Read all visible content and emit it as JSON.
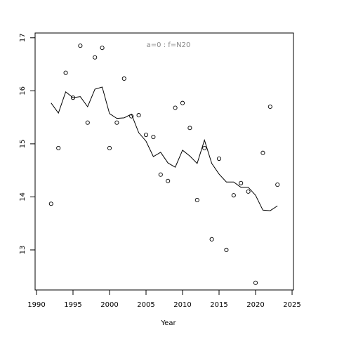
{
  "chart_data": {
    "type": "scatter",
    "annotation": "a=0  :  f=N20",
    "x_label": "Year",
    "x": [
      1992,
      1993,
      1994,
      1995,
      1996,
      1997,
      1998,
      1999,
      2000,
      2001,
      2002,
      2003,
      2004,
      2005,
      2006,
      2007,
      2008,
      2009,
      2010,
      2011,
      2012,
      2013,
      2014,
      2015,
      2016,
      2017,
      2018,
      2019,
      2020,
      2021,
      2022,
      2023
    ],
    "series": [
      {
        "style": "points",
        "color": "#000000",
        "values": [
          13.87,
          14.92,
          16.34,
          15.87,
          16.85,
          15.4,
          16.63,
          16.81,
          14.92,
          15.4,
          16.23,
          15.52,
          15.54,
          15.17,
          15.13,
          14.42,
          14.3,
          15.68,
          15.77,
          15.3,
          13.94,
          14.92,
          13.2,
          14.72,
          13.0,
          14.03,
          14.26,
          14.1,
          12.38,
          14.83,
          15.7,
          14.23
        ]
      },
      {
        "style": "line",
        "color": "#000000",
        "values": [
          15.77,
          15.58,
          15.98,
          15.87,
          15.89,
          15.7,
          16.03,
          16.07,
          15.57,
          15.48,
          15.49,
          15.56,
          15.21,
          15.05,
          14.76,
          14.84,
          14.64,
          14.56,
          14.88,
          14.77,
          14.63,
          15.07,
          14.63,
          14.43,
          14.28,
          14.28,
          14.18,
          14.18,
          14.03,
          13.75,
          13.74,
          13.83
        ]
      }
    ],
    "xlim": [
      1989.81,
      2025.19
    ],
    "xticks": [
      1990,
      1995,
      2000,
      2005,
      2010,
      2015,
      2020,
      2025
    ],
    "ylim": [
      12.245,
      17.09
    ],
    "yticks": [
      13,
      14,
      15,
      16,
      17
    ]
  }
}
